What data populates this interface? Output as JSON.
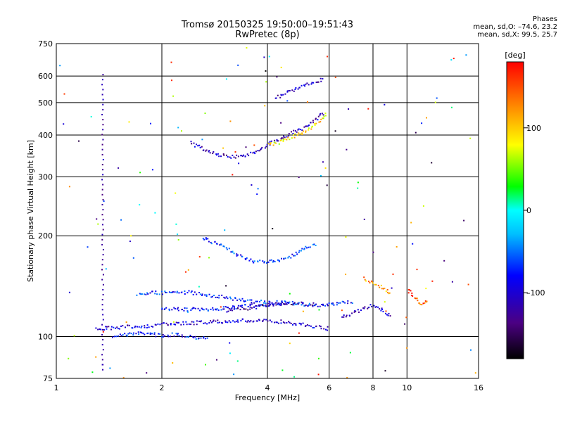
{
  "header": {
    "title": "Tromsø 20150325 19:50:00–19:51:43",
    "subtitle": "RwPretec (8p)"
  },
  "phase_box": {
    "heading": "Phases",
    "line_o": "mean, sd,O: –74.6, 23.2",
    "line_x": "mean, sd,X:  99.5, 25.7"
  },
  "colorbar": {
    "label": "[deg]",
    "range": [
      -180,
      180
    ],
    "ticks": [
      100,
      0,
      -100
    ],
    "tick_labels": [
      "100",
      "0",
      "–100"
    ]
  },
  "chart_data": {
    "type": "scatter",
    "xlabel": "Frequency [MHz]",
    "ylabel": "Stationary phase Virtual Height [km]",
    "xscale": "log",
    "yscale": "log",
    "xlim": [
      1,
      16
    ],
    "ylim": [
      75,
      750
    ],
    "xticks": [
      1,
      2,
      4,
      6,
      8,
      10,
      16
    ],
    "xtick_labels": [
      "1",
      "2",
      "4",
      "6",
      "8",
      "10",
      "16"
    ],
    "yticks": [
      75,
      100,
      200,
      300,
      400,
      500,
      600,
      750
    ],
    "ytick_labels": [
      "75",
      "100",
      "200",
      "300",
      "400",
      "500",
      "600",
      "750"
    ],
    "grid": true,
    "traces": [
      {
        "x": [
          1.45,
          1.6,
          1.8,
          2.0,
          2.2,
          2.5,
          2.7
        ],
        "y": [
          101,
          102,
          103,
          101,
          102,
          100,
          99
        ],
        "phase": -80
      },
      {
        "x": [
          1.3,
          1.5,
          1.8,
          2.0,
          2.3,
          2.7,
          3.2,
          3.8,
          4.5,
          5.3,
          6.0
        ],
        "y": [
          106,
          107,
          108,
          109,
          110,
          111,
          112,
          112,
          111,
          108,
          106
        ],
        "phase": -100
      },
      {
        "x": [
          2.0,
          2.3,
          2.6,
          3.0,
          3.5,
          4.0,
          4.5
        ],
        "y": [
          122,
          121,
          121,
          122,
          124,
          125,
          126
        ],
        "phase": -82
      },
      {
        "x": [
          3.0,
          3.5,
          4.0,
          4.5,
          5.0,
          5.5
        ],
        "y": [
          120,
          122,
          125,
          126,
          126,
          125
        ],
        "phase": -120
      },
      {
        "x": [
          1.7,
          2.0,
          2.4,
          2.8,
          3.2,
          3.6,
          4.0,
          4.4,
          5.0,
          5.5,
          6.0,
          7.0
        ],
        "y": [
          135,
          136,
          136,
          133,
          130,
          128,
          127,
          127,
          126,
          124,
          125,
          128
        ],
        "phase": -75
      },
      {
        "x": [
          2.6,
          2.8,
          3.0,
          3.3,
          3.6,
          4.0,
          4.5,
          5.0,
          5.5
        ],
        "y": [
          198,
          192,
          185,
          176,
          169,
          168,
          172,
          182,
          190
        ],
        "phase": -70
      },
      {
        "x": [
          2.4,
          2.6,
          2.8,
          3.0,
          3.2,
          3.4,
          3.6,
          3.8,
          4.0,
          4.3,
          4.6,
          5.0,
          5.4,
          5.8
        ],
        "y": [
          380,
          365,
          355,
          348,
          345,
          348,
          355,
          365,
          378,
          390,
          405,
          420,
          440,
          470
        ],
        "phase": -110
      },
      {
        "x": [
          4.0,
          4.4,
          4.8,
          5.2,
          5.6,
          5.9
        ],
        "y": [
          375,
          385,
          400,
          418,
          440,
          465
        ],
        "phase": 90
      },
      {
        "x": [
          4.2,
          4.6,
          5.0,
          5.4,
          5.8
        ],
        "y": [
          520,
          540,
          560,
          575,
          590
        ],
        "phase": -110
      },
      {
        "x": [
          6.5,
          7.0,
          7.5,
          8.0,
          8.5,
          9.0
        ],
        "y": [
          115,
          118,
          122,
          125,
          120,
          115
        ],
        "phase": -110
      },
      {
        "x": [
          7.5,
          8.0,
          8.5,
          9.0
        ],
        "y": [
          150,
          145,
          140,
          135
        ],
        "phase": 120
      },
      {
        "x": [
          10.0,
          10.5,
          11.0,
          11.5
        ],
        "y": [
          140,
          130,
          125,
          130
        ],
        "phase": 150
      }
    ]
  }
}
